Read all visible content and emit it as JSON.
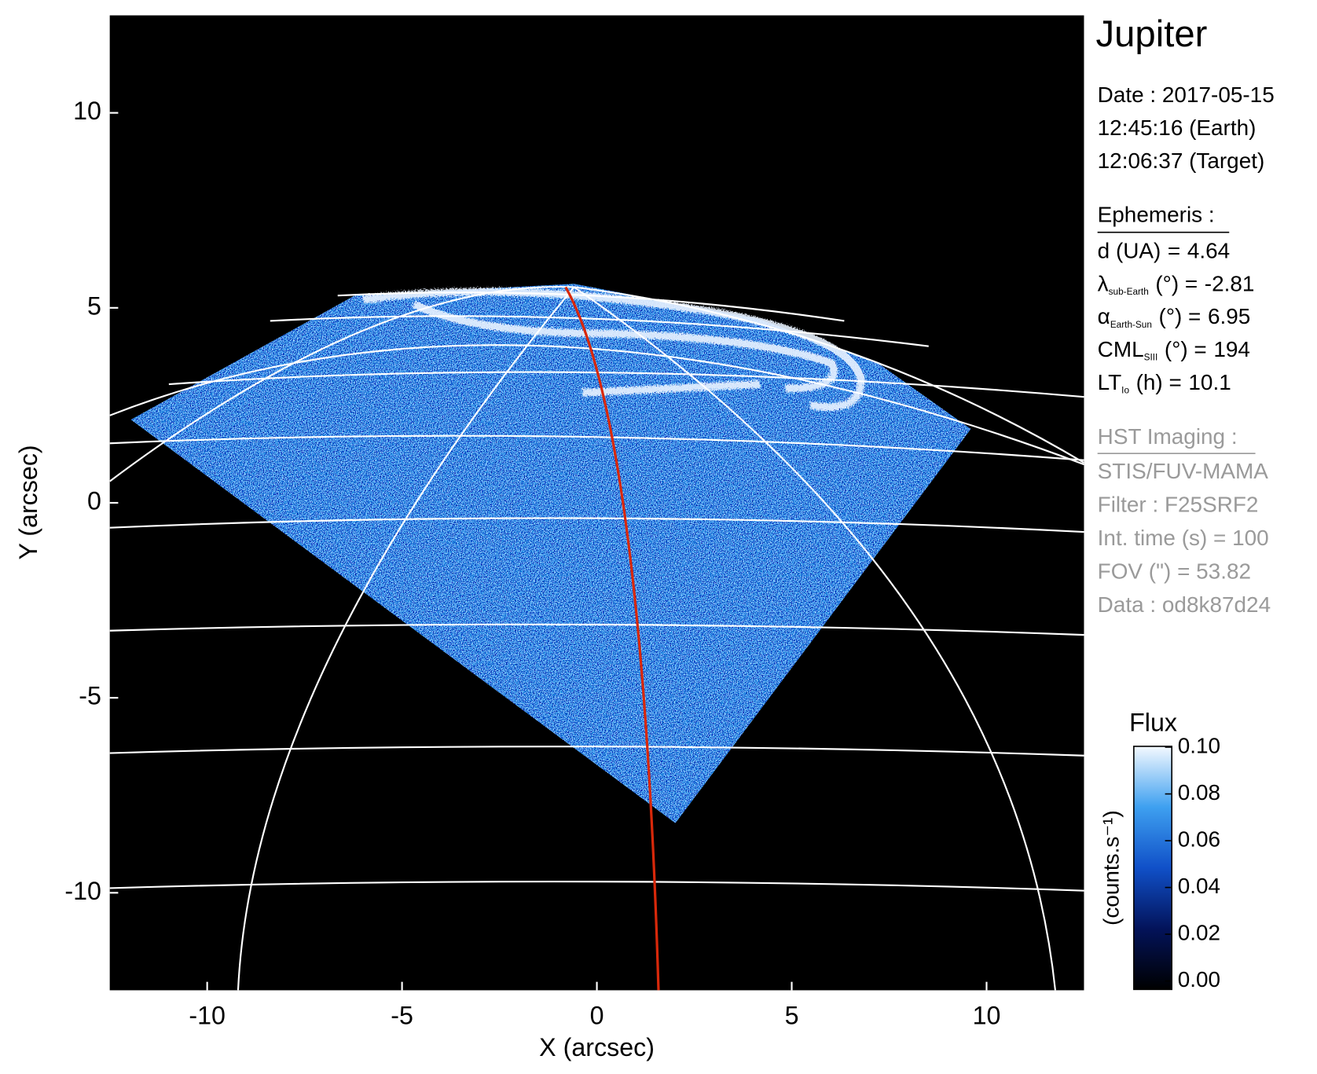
{
  "chart_data": {
    "type": "image",
    "xlabel": "X (arcsec)",
    "ylabel": "Y (arcsec)",
    "xlim": [
      -12.5,
      12.5
    ],
    "ylim": [
      -12.5,
      12.5
    ],
    "xticks": [
      -10,
      -5,
      0,
      5,
      10
    ],
    "yticks": [
      -10,
      -5,
      0,
      5,
      10
    ],
    "colorbar": {
      "title": "Flux",
      "label": "(counts.s⁻¹)",
      "lim": [
        0,
        0.1
      ],
      "ticks": [
        {
          "value": 0,
          "label": "0.00"
        },
        {
          "value": 0.02,
          "label": "0.02"
        },
        {
          "value": 0.04,
          "label": "0.04"
        },
        {
          "value": 0.06,
          "label": "0.06"
        },
        {
          "value": 0.08,
          "label": "0.08"
        },
        {
          "value": 0.1,
          "label": "0.10"
        }
      ]
    }
  },
  "panel": {
    "title": "Jupiter",
    "date": [
      "Date : 2017-05-15",
      "12:45:16 (Earth)",
      "12:06:37 (Target)"
    ],
    "ephemeris_title": "Ephemeris :",
    "ephemeris": [
      {
        "symbol": "d (UA)",
        "unit": "=",
        "value": 4.64
      },
      {
        "symbol": "λ",
        "sub": "sub-Earth",
        "unit": "(°) =",
        "value": -2.81
      },
      {
        "symbol": "α",
        "sub": "Earth-Sun",
        "unit": "(°) =",
        "value": 6.95
      },
      {
        "symbol": "CML",
        "sub": "SIII",
        "unit": "(°) =",
        "value": 194
      },
      {
        "symbol": "LT",
        "sub": "Io",
        "unit": "(h) =",
        "value": 10.1
      }
    ],
    "hst_title": "HST Imaging :",
    "hst": [
      "STIS/FUV-MAMA",
      "Filter : F25SRF2",
      "Int. time (s) = 100",
      "FOV (\") = 53.82",
      "Data : od8k87d24"
    ]
  }
}
